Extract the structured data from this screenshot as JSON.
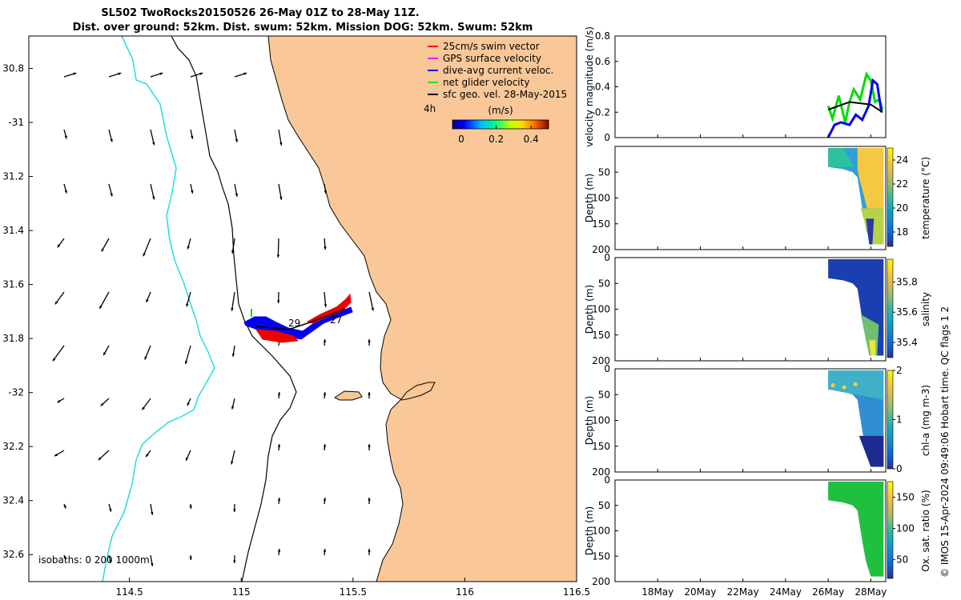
{
  "figure": {
    "title_line1": "SL502 TwoRocks20150526 26-May 01Z to 28-May 11Z.",
    "title_line2": "Dist. over ground: 52km. Dist. swum: 52km. Mission DOG: 52km. Swum: 52km",
    "footer": "© IMOS 15-Apr-2024 09:49:06 Hobart time. QC flags 1  2"
  },
  "chart_data": [
    {
      "type": "map",
      "lon_ticks": [
        "114.5",
        "115",
        "115.5",
        "116",
        "116.5"
      ],
      "lat_ticks": [
        "30.8",
        "-31",
        "31.2",
        "31.4",
        "31.6",
        "31.8",
        "-32",
        "32.2",
        "32.4",
        "32.6"
      ],
      "lon_range": [
        114.05,
        116.5
      ],
      "lat_range": [
        -32.7,
        -30.68
      ],
      "legend": [
        {
          "label": "25cm/s swim vector",
          "color": "#ff0000"
        },
        {
          "label": "GPS surface velocity",
          "color": "#ff00ff"
        },
        {
          "label": "dive-avg current veloc.",
          "color": "#0000ff"
        },
        {
          "label": "net glider velocity",
          "color": "#00ee00"
        },
        {
          "label": "sfc geo. vel. 28-May-2015",
          "color": "#000000"
        }
      ],
      "colorbar": {
        "label": "(m/s)",
        "ticks": [
          "0",
          "0.2",
          "0.4"
        ],
        "range": [
          -0.05,
          0.5
        ]
      },
      "time_label": "4h",
      "track_day_labels": [
        "29",
        "27"
      ],
      "isobaths_label": "isobaths: 0   200  1000m",
      "colors": {
        "land": "#fac898",
        "shelf_contour": "#000000",
        "deep_contour": "#22dddd"
      }
    },
    {
      "type": "line",
      "ylabel": "velocity magnitude (m/s)",
      "ylim": [
        0,
        0.8
      ],
      "yticks": [
        "0",
        "0.2",
        "0.4",
        "0.6",
        "0.8"
      ],
      "series": [
        {
          "color": "#00dd00",
          "x": [
            26.0,
            26.2,
            26.5,
            26.8,
            27.0,
            27.2,
            27.5,
            27.8,
            28.0,
            28.2,
            28.4,
            28.55
          ],
          "values": [
            0.25,
            0.15,
            0.33,
            0.12,
            0.28,
            0.38,
            0.3,
            0.5,
            0.45,
            0.28,
            0.3,
            0.22
          ]
        },
        {
          "color": "#0000ee",
          "x": [
            26.0,
            26.3,
            26.6,
            27.0,
            27.3,
            27.6,
            27.9,
            28.1,
            28.3,
            28.5
          ],
          "values": [
            0.0,
            0.1,
            0.12,
            0.1,
            0.18,
            0.14,
            0.25,
            0.45,
            0.42,
            0.2
          ]
        },
        {
          "color": "#000000",
          "x": [
            26.0,
            26.5,
            27.0,
            27.5,
            28.0,
            28.55
          ],
          "values": [
            0.22,
            0.25,
            0.28,
            0.27,
            0.26,
            0.2
          ]
        }
      ]
    },
    {
      "type": "heatmap",
      "ylabel": "Depth (m)",
      "clabel": "temperature (°C)",
      "yticks": [
        "50",
        "100",
        "150",
        "200"
      ],
      "ylim": [
        0,
        200
      ],
      "cticks": [
        "18",
        "20",
        "22",
        "24"
      ],
      "crange": [
        16.8,
        25
      ]
    },
    {
      "type": "heatmap",
      "ylabel": "Depth (m)",
      "clabel": "salinity",
      "yticks": [
        "0",
        "50",
        "100",
        "150",
        "200"
      ],
      "ylim": [
        0,
        200
      ],
      "cticks": [
        "35.4",
        "35.6",
        "35.8"
      ],
      "crange": [
        35.3,
        35.95
      ]
    },
    {
      "type": "heatmap",
      "ylabel": "Depth (m)",
      "clabel": "chl-a (mg m-3)",
      "yticks": [
        "0",
        "50",
        "100",
        "150",
        "200"
      ],
      "ylim": [
        0,
        200
      ],
      "cticks": [
        "0",
        "1",
        "2"
      ],
      "crange": [
        0,
        2
      ]
    },
    {
      "type": "heatmap",
      "ylabel": "Depth (m)",
      "clabel": "Ox. sat. ratio (%)",
      "yticks": [
        "0",
        "50",
        "100",
        "150",
        "200"
      ],
      "ylim": [
        0,
        200
      ],
      "cticks": [
        "50",
        "100",
        "150"
      ],
      "crange": [
        20,
        175
      ]
    }
  ],
  "time_axis": {
    "ticks": [
      "18May",
      "20May",
      "22May",
      "24May",
      "26May",
      "28May"
    ],
    "range_days": [
      16.0,
      28.7
    ],
    "tick_days": [
      18,
      20,
      22,
      24,
      26,
      28
    ]
  }
}
